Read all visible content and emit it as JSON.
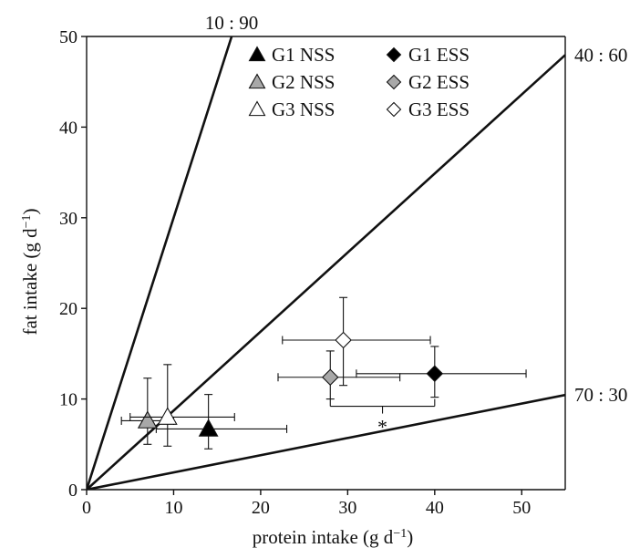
{
  "chart_data": {
    "type": "scatter",
    "title": "",
    "xlabel": {
      "base": "protein intake (g d",
      "sup": "−1",
      "close": ")"
    },
    "ylabel": {
      "base": "fat intake (g d",
      "sup": "−1",
      "close": ")"
    },
    "xlim": [
      0,
      55
    ],
    "ylim": [
      0,
      50
    ],
    "xticks": [
      0,
      10,
      20,
      30,
      40,
      50
    ],
    "yticks": [
      0,
      10,
      20,
      30,
      40,
      50
    ],
    "grid": false,
    "legend_position": "top-center",
    "ratio_lines": [
      {
        "label": "10 : 90",
        "slope": 3.0
      },
      {
        "label": "40 : 60",
        "slope": 0.872
      },
      {
        "label": "70 : 30",
        "slope": 0.19
      }
    ],
    "series": [
      {
        "name": "G1 NSS",
        "marker": "triangle",
        "fill": "#000000",
        "x": 14,
        "y": 6.7,
        "x_err": [
          8,
          23
        ],
        "y_err": [
          4.5,
          10.5
        ]
      },
      {
        "name": "G2 NSS",
        "marker": "triangle",
        "fill": "#a8a8a8",
        "x": 7,
        "y": 7.6,
        "x_err": [
          4,
          10
        ],
        "y_err": [
          5,
          12.3
        ]
      },
      {
        "name": "G3 NSS",
        "marker": "triangle",
        "fill": "#ffffff",
        "x": 9.3,
        "y": 8.0,
        "x_err": [
          5,
          17
        ],
        "y_err": [
          4.8,
          13.8
        ]
      },
      {
        "name": "G1 ESS",
        "marker": "diamond",
        "fill": "#000000",
        "x": 40,
        "y": 12.8,
        "x_err": [
          31,
          50.5
        ],
        "y_err": [
          10.2,
          15.8
        ]
      },
      {
        "name": "G2 ESS",
        "marker": "diamond",
        "fill": "#a8a8a8",
        "x": 28,
        "y": 12.4,
        "x_err": [
          22,
          36
        ],
        "y_err": [
          10,
          15.3
        ]
      },
      {
        "name": "G3 ESS",
        "marker": "diamond",
        "fill": "#ffffff",
        "x": 29.5,
        "y": 16.5,
        "x_err": [
          22.5,
          39.5
        ],
        "y_err": [
          11.5,
          21.2
        ]
      }
    ],
    "significance": {
      "label": "*",
      "from_x": 28,
      "to_x": 40,
      "y": 9.2
    }
  }
}
